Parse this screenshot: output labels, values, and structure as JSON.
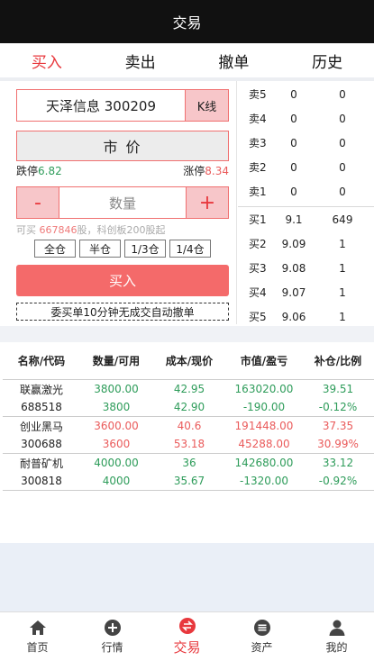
{
  "title": "交易",
  "tabs": [
    {
      "label": "买入",
      "active": true
    },
    {
      "label": "卖出",
      "active": false
    },
    {
      "label": "撤单",
      "active": false
    },
    {
      "label": "历史",
      "active": false
    }
  ],
  "order": {
    "stock": "天泽信息 300209",
    "kline_label": "K线",
    "price_mode": "市 价",
    "limit_down_label": "跌停",
    "limit_down": "6.82",
    "limit_up_label": "涨停",
    "limit_up": "8.34",
    "minus": "-",
    "plus": "+",
    "qty_placeholder": "数量",
    "avail_prefix": "可买 ",
    "avail_num": "667846",
    "avail_suffix": "股，科创板200股起",
    "positions": [
      "全仓",
      "半仓",
      "1/3仓",
      "1/4仓"
    ],
    "buy_label": "买入",
    "notice": "委买单10分钟无成交自动撤单"
  },
  "book": {
    "asks": [
      {
        "label": "卖5",
        "price": "0",
        "vol": "0"
      },
      {
        "label": "卖4",
        "price": "0",
        "vol": "0"
      },
      {
        "label": "卖3",
        "price": "0",
        "vol": "0"
      },
      {
        "label": "卖2",
        "price": "0",
        "vol": "0"
      },
      {
        "label": "卖1",
        "price": "0",
        "vol": "0"
      }
    ],
    "bids": [
      {
        "label": "买1",
        "price": "9.1",
        "vol": "649"
      },
      {
        "label": "买2",
        "price": "9.09",
        "vol": "1"
      },
      {
        "label": "买3",
        "price": "9.08",
        "vol": "1"
      },
      {
        "label": "买4",
        "price": "9.07",
        "vol": "1"
      },
      {
        "label": "买5",
        "price": "9.06",
        "vol": "1"
      }
    ]
  },
  "holdings": {
    "headers": [
      "名称/代码",
      "数量/可用",
      "成本/现价",
      "市值/盈亏",
      "补仓/比例"
    ],
    "rows": [
      {
        "name": "联赢激光",
        "code": "688518",
        "qty": "3800.00",
        "avail": "3800",
        "cost": "42.95",
        "price": "42.90",
        "mv": "163020.00",
        "pl": "-190.00",
        "add": "39.51",
        "ratio": "-0.12%",
        "tone": "green"
      },
      {
        "name": "创业黑马",
        "code": "300688",
        "qty": "3600.00",
        "avail": "3600",
        "cost": "40.6",
        "price": "53.18",
        "mv": "191448.00",
        "pl": "45288.00",
        "add": "37.35",
        "ratio": "30.99%",
        "tone": "red"
      },
      {
        "name": "耐普矿机",
        "code": "300818",
        "qty": "4000.00",
        "avail": "4000",
        "cost": "36",
        "price": "35.67",
        "mv": "142680.00",
        "pl": "-1320.00",
        "add": "33.12",
        "ratio": "-0.92%",
        "tone": "green"
      }
    ]
  },
  "nav": [
    {
      "label": "首页",
      "icon": "home-icon",
      "active": false
    },
    {
      "label": "行情",
      "icon": "plus-circle-icon",
      "active": false
    },
    {
      "label": "交易",
      "icon": "exchange-icon",
      "active": true
    },
    {
      "label": "资产",
      "icon": "list-circle-icon",
      "active": false
    },
    {
      "label": "我的",
      "icon": "user-icon",
      "active": false
    }
  ],
  "colors": {
    "accent": "#e8383d",
    "up": "#ea5b5b",
    "down": "#2e9c5a",
    "buy_button": "#f46a6a"
  }
}
